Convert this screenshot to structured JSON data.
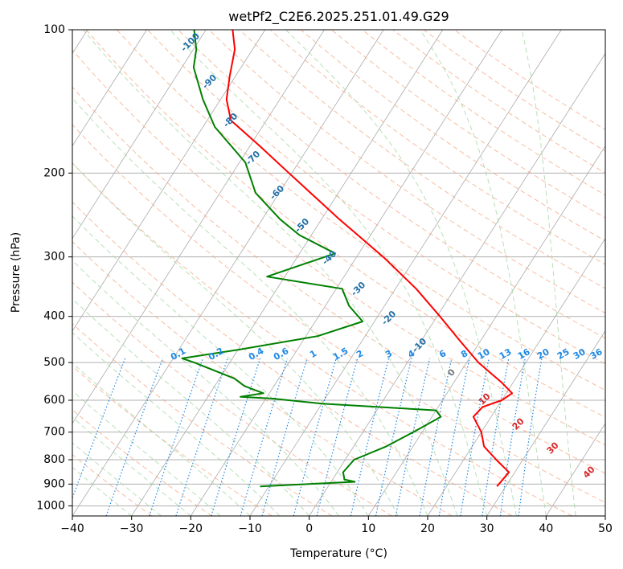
{
  "chart_data": {
    "type": "skew-t",
    "title": "wetPf2_C2E6.2025.251.01.49.G29",
    "xlabel": "Temperature (°C)",
    "ylabel": "Pressure (hPa)",
    "xlim": [
      -40,
      50
    ],
    "ylim_hpa": [
      1050,
      100
    ],
    "x_ticks": [
      -40,
      -30,
      -20,
      -10,
      0,
      10,
      20,
      30,
      40,
      50
    ],
    "y_ticks": [
      100,
      200,
      300,
      400,
      500,
      600,
      700,
      800,
      900,
      1000
    ],
    "colors": {
      "temperature": "#ff0000",
      "dewpoint": "#008000",
      "isotherm": "#aaaaaa",
      "dry_adiabat": "#f4a582",
      "moist_adiabat": "#a6d8a6",
      "mixing_ratio": "#1e88e5",
      "isotherm_label": "#1f6fa8",
      "moist_label": "#d62728"
    },
    "series": [
      {
        "name": "Temperature",
        "points": [
          {
            "p": 910,
            "t": 28.5
          },
          {
            "p": 850,
            "t": 29.0
          },
          {
            "p": 800,
            "t": 25.5
          },
          {
            "p": 750,
            "t": 22.0
          },
          {
            "p": 700,
            "t": 20.0
          },
          {
            "p": 650,
            "t": 17.0
          },
          {
            "p": 620,
            "t": 17.5
          },
          {
            "p": 600,
            "t": 20.0
          },
          {
            "p": 580,
            "t": 21.0
          },
          {
            "p": 550,
            "t": 18.0
          },
          {
            "p": 500,
            "t": 12.0
          },
          {
            "p": 450,
            "t": 6.5
          },
          {
            "p": 400,
            "t": 0.5
          },
          {
            "p": 350,
            "t": -6.5
          },
          {
            "p": 300,
            "t": -15.5
          },
          {
            "p": 250,
            "t": -27.0
          },
          {
            "p": 200,
            "t": -40.5
          },
          {
            "p": 175,
            "t": -48.5
          },
          {
            "p": 155,
            "t": -56.0
          },
          {
            "p": 140,
            "t": -59.0
          },
          {
            "p": 125,
            "t": -61.0
          },
          {
            "p": 110,
            "t": -63.0
          },
          {
            "p": 100,
            "t": -65.5
          }
        ]
      },
      {
        "name": "Dewpoint",
        "points": [
          {
            "p": 910,
            "t": -11.5
          },
          {
            "p": 890,
            "t": 4.0
          },
          {
            "p": 880,
            "t": 2.0
          },
          {
            "p": 850,
            "t": 1.0
          },
          {
            "p": 800,
            "t": 1.5
          },
          {
            "p": 750,
            "t": 5.5
          },
          {
            "p": 700,
            "t": 8.5
          },
          {
            "p": 650,
            "t": 11.5
          },
          {
            "p": 630,
            "t": 10.0
          },
          {
            "p": 610,
            "t": -10.0
          },
          {
            "p": 595,
            "t": -19.0
          },
          {
            "p": 590,
            "t": -24.5
          },
          {
            "p": 580,
            "t": -21.0
          },
          {
            "p": 560,
            "t": -25.0
          },
          {
            "p": 540,
            "t": -27.5
          },
          {
            "p": 500,
            "t": -36.0
          },
          {
            "p": 490,
            "t": -38.5
          },
          {
            "p": 470,
            "t": -30.0
          },
          {
            "p": 440,
            "t": -18.0
          },
          {
            "p": 410,
            "t": -12.0
          },
          {
            "p": 380,
            "t": -16.0
          },
          {
            "p": 350,
            "t": -19.0
          },
          {
            "p": 330,
            "t": -33.0
          },
          {
            "p": 310,
            "t": -28.0
          },
          {
            "p": 295,
            "t": -24.0
          },
          {
            "p": 270,
            "t": -32.0
          },
          {
            "p": 250,
            "t": -37.0
          },
          {
            "p": 220,
            "t": -44.0
          },
          {
            "p": 190,
            "t": -49.0
          },
          {
            "p": 160,
            "t": -58.0
          },
          {
            "p": 140,
            "t": -63.0
          },
          {
            "p": 120,
            "t": -68.0
          },
          {
            "p": 110,
            "t": -69.5
          },
          {
            "p": 100,
            "t": -72.0
          }
        ]
      }
    ],
    "isotherm_labels": [
      "-100",
      "-90",
      "-80",
      "-70",
      "-60",
      "-50",
      "-40",
      "-30",
      "-20",
      "-10",
      "0"
    ],
    "moist_adiabat_labels": [
      "10",
      "20",
      "30",
      "40"
    ],
    "mixing_ratio_labels": [
      "0.1",
      "0.2",
      "0.4",
      "0.6",
      "1",
      "1.5",
      "2",
      "3",
      "4",
      "6",
      "8",
      "10",
      "13",
      "16",
      "20",
      "25",
      "30",
      "36"
    ]
  }
}
